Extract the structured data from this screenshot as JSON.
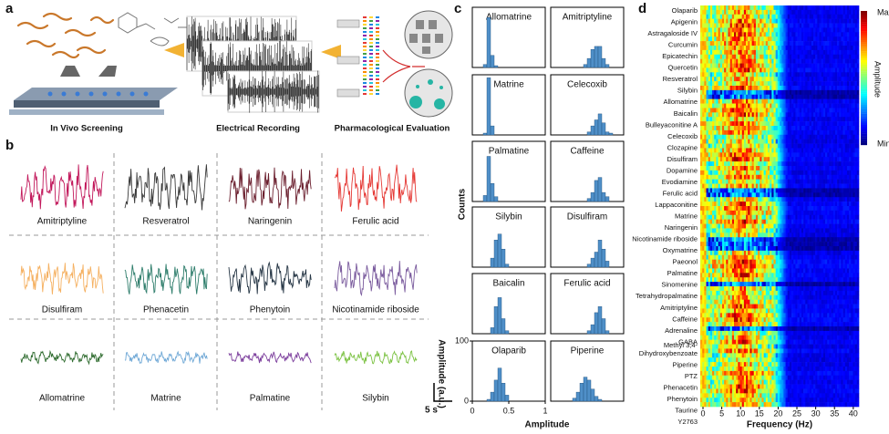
{
  "panel_a": {
    "label": "a",
    "steps": [
      "In Vivo Screening",
      "Electrical Recording",
      "Pharmacological Evaluation"
    ]
  },
  "panel_b": {
    "label": "b",
    "traces": [
      {
        "name": "Amitriptyline",
        "color": "#c2185b"
      },
      {
        "name": "Resveratrol",
        "color": "#3a3a3a"
      },
      {
        "name": "Naringenin",
        "color": "#6b1f2e"
      },
      {
        "name": "Ferulic acid",
        "color": "#e53935"
      },
      {
        "name": "Disulfiram",
        "color": "#f5b060"
      },
      {
        "name": "Phenacetin",
        "color": "#2e7d6b"
      },
      {
        "name": "Phenytoin",
        "color": "#263645"
      },
      {
        "name": "Nicotinamide riboside",
        "color": "#7b5c9e"
      },
      {
        "name": "Allomatrine",
        "color": "#2e6b2e"
      },
      {
        "name": "Matrine",
        "color": "#6fa8d6"
      },
      {
        "name": "Palmatine",
        "color": "#7b3d9c"
      },
      {
        "name": "Silybin",
        "color": "#7cc243"
      }
    ],
    "scale_bar": {
      "y_label": "Amplitude (a.u.)",
      "x_label": "5 s"
    }
  },
  "panel_c": {
    "label": "c",
    "type": "histogram",
    "y_label": "Counts",
    "x_label": "Amplitude",
    "color": "#4f8fc8",
    "bins": [
      0,
      0.05,
      0.1,
      0.15,
      0.2,
      0.25,
      0.3,
      0.35,
      0.4,
      0.45,
      0.5,
      0.55,
      0.6,
      0.65,
      0.7,
      0.75,
      0.8,
      0.85,
      0.9,
      0.95,
      1
    ],
    "xlim": [
      0,
      1
    ],
    "ylim": [
      0,
      100
    ],
    "xticks": [
      0,
      0.5,
      1
    ],
    "yticks": [
      0,
      100
    ],
    "histograms": [
      {
        "name": "Allomatrine",
        "counts": [
          0,
          0,
          0,
          5,
          83,
          20,
          3,
          0,
          0,
          0,
          0,
          0,
          0,
          0,
          0,
          0,
          0,
          0,
          0,
          0
        ]
      },
      {
        "name": "Amitriptyline",
        "counts": [
          0,
          0,
          0,
          0,
          0,
          0,
          0,
          0,
          0,
          5,
          15,
          30,
          35,
          35,
          15,
          5,
          0,
          0,
          0,
          0
        ]
      },
      {
        "name": "Matrine",
        "counts": [
          0,
          0,
          0,
          3,
          95,
          15,
          0,
          0,
          0,
          0,
          0,
          0,
          0,
          0,
          0,
          0,
          0,
          0,
          0,
          0
        ]
      },
      {
        "name": "Celecoxib",
        "counts": [
          0,
          0,
          0,
          0,
          0,
          0,
          0,
          0,
          0,
          0,
          5,
          15,
          25,
          35,
          20,
          5,
          3,
          0,
          0,
          0
        ]
      },
      {
        "name": "Palmatine",
        "counts": [
          0,
          0,
          0,
          10,
          75,
          30,
          8,
          0,
          0,
          0,
          0,
          0,
          0,
          0,
          0,
          0,
          0,
          0,
          0,
          0
        ]
      },
      {
        "name": "Caffeine",
        "counts": [
          0,
          0,
          0,
          0,
          0,
          0,
          0,
          0,
          0,
          0,
          5,
          15,
          35,
          40,
          15,
          8,
          0,
          0,
          0,
          0
        ]
      },
      {
        "name": "Silybin",
        "counts": [
          0,
          0,
          0,
          0,
          0,
          15,
          45,
          55,
          30,
          5,
          0,
          0,
          0,
          0,
          0,
          0,
          0,
          0,
          0,
          0
        ]
      },
      {
        "name": "Disulfiram",
        "counts": [
          0,
          0,
          0,
          0,
          0,
          0,
          0,
          0,
          0,
          0,
          5,
          15,
          25,
          45,
          30,
          10,
          0,
          0,
          0,
          0
        ]
      },
      {
        "name": "Baicalin",
        "counts": [
          0,
          0,
          0,
          0,
          0,
          10,
          45,
          60,
          25,
          5,
          0,
          0,
          0,
          0,
          0,
          0,
          0,
          0,
          0,
          0
        ]
      },
      {
        "name": "Ferulic acid",
        "counts": [
          0,
          0,
          0,
          0,
          0,
          0,
          0,
          0,
          0,
          0,
          5,
          15,
          35,
          45,
          25,
          5,
          0,
          0,
          0,
          0
        ]
      },
      {
        "name": "Olaparib",
        "counts": [
          0,
          0,
          0,
          0,
          3,
          15,
          35,
          55,
          30,
          10,
          0,
          0,
          0,
          0,
          0,
          0,
          0,
          0,
          0,
          0
        ]
      },
      {
        "name": "Piperine",
        "counts": [
          0,
          0,
          0,
          0,
          0,
          0,
          5,
          15,
          30,
          40,
          35,
          20,
          8,
          3,
          0,
          0,
          0,
          0,
          0,
          0
        ]
      }
    ]
  },
  "panel_d": {
    "label": "d",
    "type": "heatmap",
    "x_label": "Frequency (Hz)",
    "xlim": [
      0,
      41.5
    ],
    "xticks": [
      0,
      5,
      10,
      15,
      20,
      25,
      30,
      35,
      40
    ],
    "rows": [
      "Olaparib",
      "Apigenin",
      "Astragaloside IV",
      "Curcumin",
      "Epicatechin",
      "Quercetin",
      "Resveratrol",
      "Silybin",
      "Allomatrine",
      "Baicalin",
      "Bulleyaconitine A",
      "Celecoxib",
      "Clozapine",
      "Disulfiram",
      "Dopamine",
      "Evodiamine",
      "Ferulic acid",
      "Lappaconitine",
      "Matrine",
      "Naringenin",
      "Nicotinamide riboside",
      "Oxymatrine",
      "Paeonol",
      "Palmatine",
      "Sinomenine",
      "Tetrahydropalmatine",
      "Amitriptyline",
      "Caffeine",
      "Adrenaline",
      "GABA",
      [
        "Methyl 3,4-",
        "Dihydroxybenzoate"
      ],
      "Piperine",
      "PTZ",
      "Phenacetin",
      "Phenytoin",
      "Taurine",
      "Y2763"
    ],
    "colorbar": {
      "title": "Amplitude",
      "max_label": "Max",
      "min_label": "Min"
    }
  }
}
